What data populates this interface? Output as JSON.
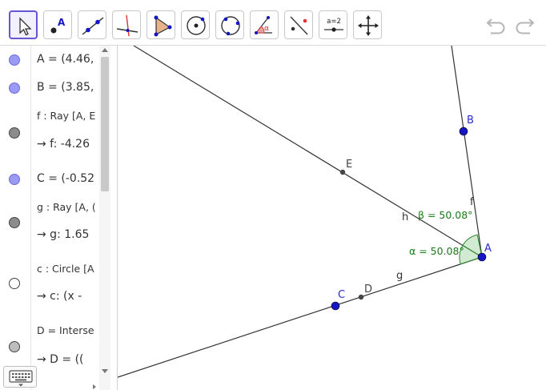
{
  "toolbar": {
    "tools": [
      {
        "name": "move-tool",
        "icon": "cursor-arrow-icon"
      },
      {
        "name": "point-tool",
        "icon": "point-a-icon",
        "glyph": "A"
      },
      {
        "name": "line-tool",
        "icon": "line-through-points-icon"
      },
      {
        "name": "perpendicular-line-tool",
        "icon": "perpendicular-icon"
      },
      {
        "name": "polygon-tool",
        "icon": "triangle-polygon-icon"
      },
      {
        "name": "circle-center-point-tool",
        "icon": "circle-center-icon"
      },
      {
        "name": "circle-three-points-tool",
        "icon": "circle-three-points-icon"
      },
      {
        "name": "angle-tool",
        "icon": "angle-icon",
        "glyph": "α"
      },
      {
        "name": "reflect-tool",
        "icon": "reflect-line-icon"
      },
      {
        "name": "slider-tool",
        "icon": "slider-icon",
        "glyph": "a=2"
      },
      {
        "name": "move-graphics-view-tool",
        "icon": "move-arrows-icon"
      }
    ],
    "undo_icon": "undo-icon",
    "redo_icon": "redo-icon"
  },
  "algebra": {
    "items": [
      {
        "marble": "blue",
        "line1": "A = (4.46,"
      },
      {
        "marble": "blue",
        "line1": "B = (3.85,"
      },
      {
        "marble": "gray",
        "line1": "f : Ray [A, E",
        "line2": "→  f: -4.26"
      },
      {
        "marble": "blue",
        "line1": "C = (-0.52"
      },
      {
        "marble": "gray",
        "line1": "g : Ray [A, (",
        "line2": "→  g: 1.65"
      },
      {
        "marble": "white",
        "line1": "c : Circle [A",
        "line2": "→  c: (x -"
      },
      {
        "marble": "light",
        "line1": "D = Interse",
        "line2": "→  D = (("
      }
    ],
    "keyboard_icon": "keyboard-icon"
  },
  "graphics": {
    "labels": {
      "A": "A",
      "B": "B",
      "C": "C",
      "D": "D",
      "E": "E",
      "f": "f",
      "g": "g",
      "h": "h",
      "beta": "β = 50.08°",
      "alpha": "α = 50.08°"
    },
    "colors": {
      "point_blue": "#1515c7",
      "point_dark": "#333333",
      "line": "#333333",
      "angle_fill": "#2e8b2e",
      "angle_text": "#1a7a1a",
      "label_blue": "#2b2bd0",
      "tool_selected_border": "#6557d2"
    }
  }
}
